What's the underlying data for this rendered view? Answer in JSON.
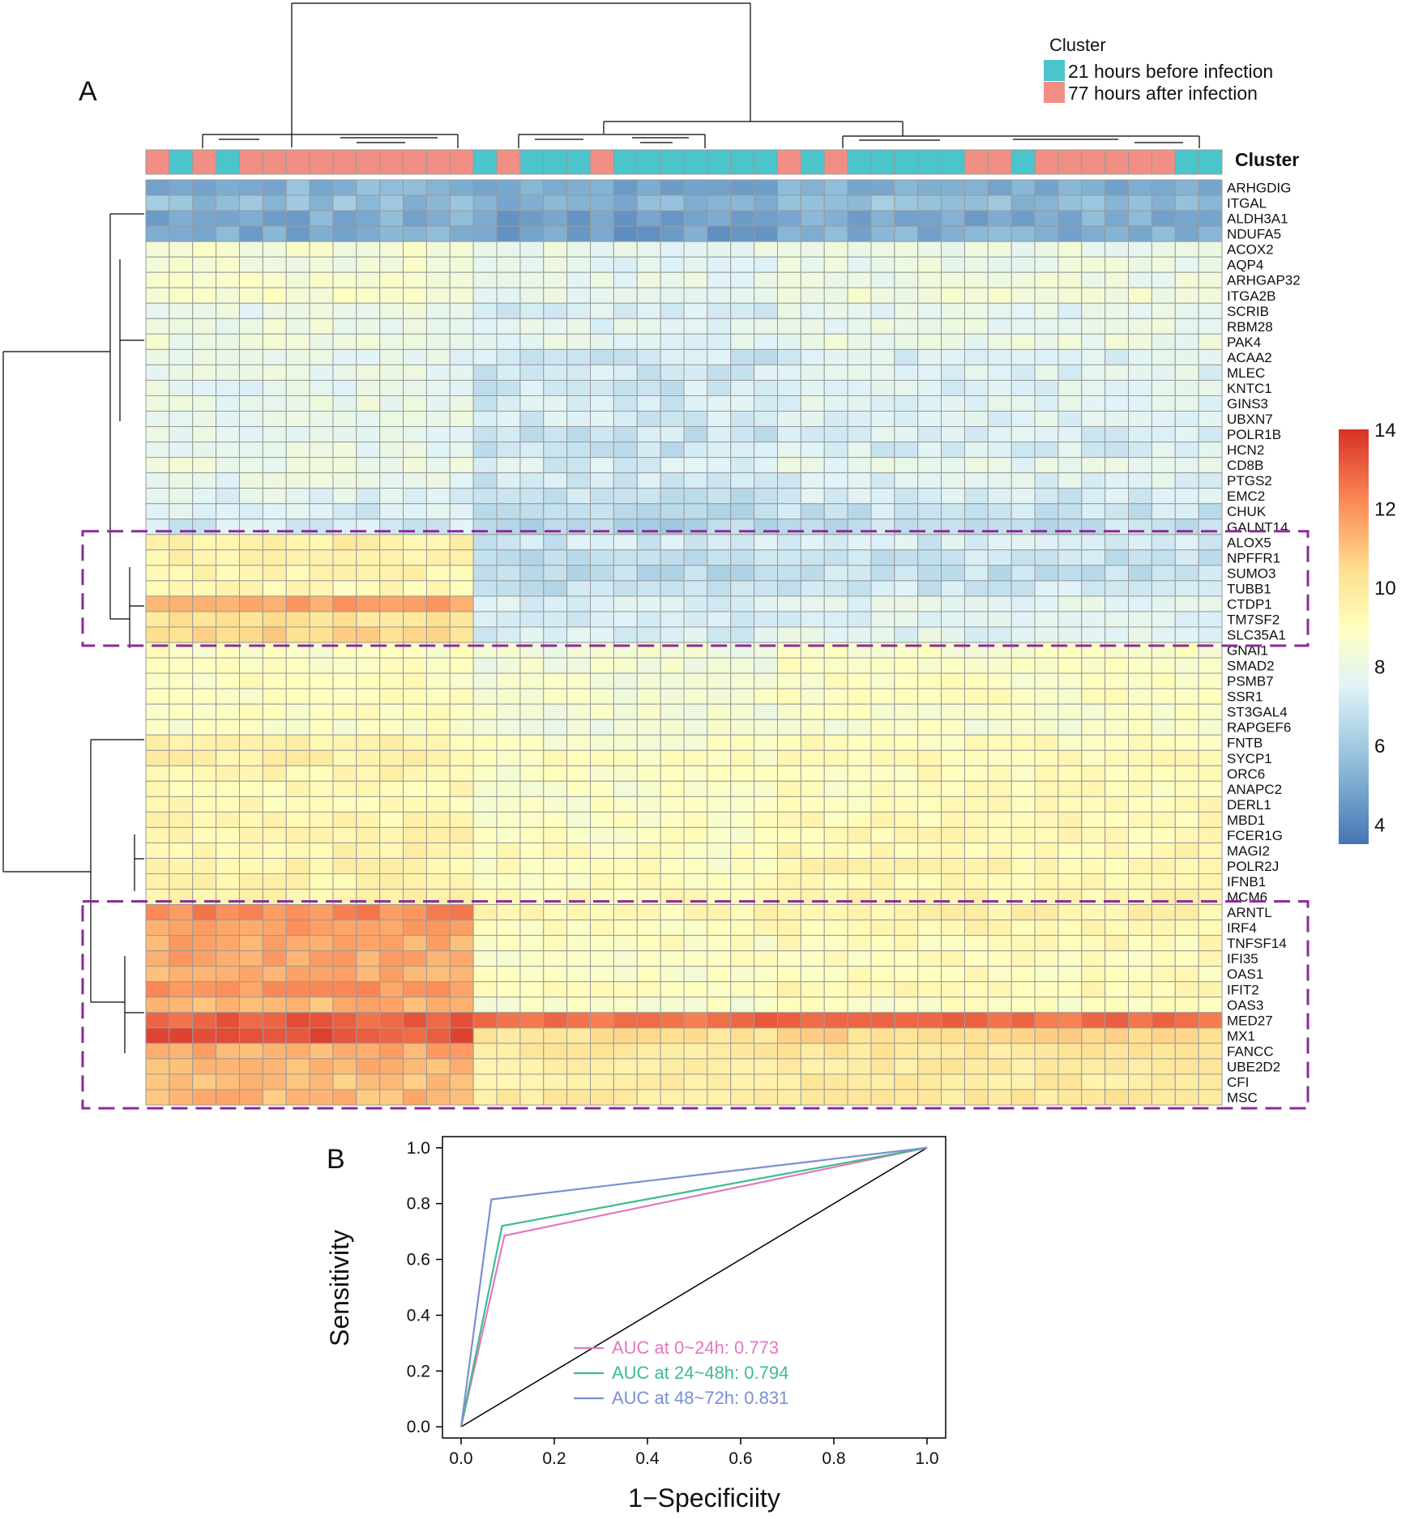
{
  "chart_data": [
    {
      "type": "heatmap",
      "panel_label": "A",
      "legend_title": "Cluster",
      "legend_items": [
        {
          "label": "21 hours before infection",
          "color": "#4bc4cc"
        },
        {
          "label": "77 hours after infection",
          "color": "#f18f85"
        }
      ],
      "annotation_label": "Cluster",
      "colorbar": {
        "min": 3.5,
        "max": 14,
        "ticks": [
          "14",
          "12",
          "10",
          "8",
          "6",
          "4"
        ],
        "colors": [
          "#4575b4",
          "#91bfdb",
          "#e0f3f8",
          "#ffffbf",
          "#fee090",
          "#fc8d59",
          "#d73027"
        ]
      },
      "column_groups": [
        "77 hours after infection",
        "21 hours before infection",
        "77 hours after infection",
        "21 hours before infection",
        "77 hours after infection",
        "77 hours after infection",
        "77 hours after infection",
        "77 hours after infection",
        "77 hours after infection",
        "77 hours after infection",
        "77 hours after infection",
        "77 hours after infection",
        "77 hours after infection",
        "77 hours after infection",
        "21 hours before infection",
        "77 hours after infection",
        "21 hours before infection",
        "21 hours before infection",
        "21 hours before infection",
        "77 hours after infection",
        "21 hours before infection",
        "21 hours before infection",
        "21 hours before infection",
        "21 hours before infection",
        "21 hours before infection",
        "21 hours before infection",
        "21 hours before infection",
        "77 hours after infection",
        "21 hours before infection",
        "77 hours after infection",
        "21 hours before infection",
        "21 hours before infection",
        "21 hours before infection",
        "21 hours before infection",
        "21 hours before infection",
        "77 hours after infection",
        "77 hours after infection",
        "21 hours before infection",
        "77 hours after infection",
        "77 hours after infection",
        "77 hours after infection",
        "77 hours after infection",
        "77 hours after infection",
        "77 hours after infection",
        "21 hours before infection",
        "21 hours before infection"
      ],
      "genes": [
        "ARHGDIG",
        "ITGAL",
        "ALDH3A1",
        "NDUFA5",
        "ACOX2",
        "AQP4",
        "ARHGAP32",
        "ITGA2B",
        "SCRIB",
        "RBM28",
        "PAK4",
        "ACAA2",
        "MLEC",
        "KNTC1",
        "GINS3",
        "UBXN7",
        "POLR1B",
        "HCN2",
        "CD8B",
        "PTGS2",
        "EMC2",
        "CHUK",
        "GALNT14",
        "ALOX5",
        "NPFFR1",
        "SUMO3",
        "TUBB1",
        "CTDP1",
        "TM7SF2",
        "SLC35A1",
        "GNAI1",
        "SMAD2",
        "PSMB7",
        "SSR1",
        "ST3GAL4",
        "RAPGEF6",
        "FNTB",
        "SYCP1",
        "ORC6",
        "ANAPC2",
        "DERL1",
        "MBD1",
        "FCER1G",
        "MAGI2",
        "POLR2J",
        "IFNB1",
        "MCM6",
        "ARNTL",
        "IRF4",
        "TNFSF14",
        "IFI35",
        "OAS1",
        "IFIT2",
        "OAS3",
        "MED27",
        "MX1",
        "FANCC",
        "UBE2D2",
        "CFI",
        "MSC"
      ],
      "row_means": [
        [
          5.0,
          4.6,
          4.8
        ],
        [
          5.3,
          5.0,
          5.3
        ],
        [
          4.8,
          4.4,
          4.8
        ],
        [
          4.8,
          4.5,
          4.8
        ],
        [
          8.2,
          7.4,
          7.6
        ],
        [
          8.0,
          7.3,
          7.6
        ],
        [
          8.2,
          7.4,
          7.7
        ],
        [
          8.4,
          7.5,
          7.9
        ],
        [
          7.5,
          6.9,
          7.3
        ],
        [
          7.7,
          7.2,
          7.5
        ],
        [
          7.8,
          7.3,
          7.6
        ],
        [
          7.3,
          6.6,
          7.0
        ],
        [
          7.5,
          6.7,
          7.1
        ],
        [
          7.3,
          6.6,
          7.0
        ],
        [
          7.5,
          6.8,
          7.2
        ],
        [
          7.4,
          6.7,
          7.1
        ],
        [
          7.3,
          6.5,
          6.9
        ],
        [
          7.4,
          6.5,
          6.9
        ],
        [
          7.7,
          6.9,
          7.3
        ],
        [
          7.4,
          6.7,
          7.0
        ],
        [
          7.1,
          6.4,
          6.8
        ],
        [
          6.9,
          6.1,
          6.5
        ],
        [
          6.8,
          6.0,
          6.4
        ],
        [
          9.6,
          6.6,
          6.8
        ],
        [
          9.4,
          6.3,
          6.5
        ],
        [
          9.3,
          6.2,
          6.4
        ],
        [
          9.0,
          6.4,
          6.6
        ],
        [
          11.8,
          6.9,
          7.3
        ],
        [
          10.2,
          6.7,
          7.0
        ],
        [
          10.6,
          6.9,
          7.2
        ],
        [
          8.6,
          8.0,
          8.4
        ],
        [
          8.6,
          8.0,
          8.5
        ],
        [
          8.7,
          8.1,
          8.6
        ],
        [
          8.8,
          8.2,
          8.7
        ],
        [
          8.7,
          8.1,
          8.6
        ],
        [
          8.5,
          7.9,
          8.3
        ],
        [
          9.3,
          8.5,
          8.9
        ],
        [
          9.5,
          8.7,
          9.0
        ],
        [
          9.2,
          8.5,
          8.9
        ],
        [
          9.0,
          8.4,
          8.8
        ],
        [
          9.1,
          8.5,
          8.9
        ],
        [
          9.2,
          8.6,
          9.0
        ],
        [
          9.3,
          8.7,
          9.1
        ],
        [
          9.4,
          8.8,
          9.2
        ],
        [
          9.4,
          8.8,
          9.3
        ],
        [
          9.3,
          8.8,
          9.2
        ],
        [
          9.4,
          8.9,
          9.3
        ],
        [
          12.3,
          9.2,
          9.5
        ],
        [
          11.8,
          8.9,
          9.2
        ],
        [
          11.6,
          8.7,
          9.0
        ],
        [
          11.7,
          8.6,
          8.9
        ],
        [
          11.5,
          8.5,
          8.8
        ],
        [
          12.1,
          8.7,
          9.1
        ],
        [
          11.4,
          8.4,
          8.7
        ],
        [
          13.1,
          12.9,
          12.8
        ],
        [
          13.3,
          10.3,
          10.6
        ],
        [
          11.6,
          9.9,
          10.1
        ],
        [
          11.3,
          9.7,
          9.9
        ],
        [
          11.2,
          9.6,
          9.8
        ],
        [
          11.3,
          9.8,
          10.0
        ]
      ],
      "highlight_boxes": [
        {
          "from_gene": "ALOX5",
          "to_gene": "SLC35A1"
        },
        {
          "from_gene": "ARNTL",
          "to_gene": "MSC"
        }
      ]
    },
    {
      "type": "line",
      "panel_label": "B",
      "xlabel": "1−Specificiity",
      "ylabel": "Sensitivity",
      "xlim": [
        -0.04,
        1.04
      ],
      "ylim": [
        -0.04,
        1.04
      ],
      "xticks": [
        "0.0",
        "0.2",
        "0.4",
        "0.6",
        "0.8",
        "1.0"
      ],
      "yticks": [
        "0.0",
        "0.2",
        "0.4",
        "0.6",
        "0.8",
        "1.0"
      ],
      "series": [
        {
          "name": "AUC at 0~24h:  0.773",
          "color": "#e377c2",
          "x": [
            0,
            0.093,
            1
          ],
          "y": [
            0,
            0.685,
            1
          ]
        },
        {
          "name": "AUC at 24~48h: 0.794",
          "color": "#3dbd8a",
          "x": [
            0,
            0.088,
            1
          ],
          "y": [
            0,
            0.72,
            1
          ]
        },
        {
          "name": "AUC at 48~72h: 0.831",
          "color": "#7b8fd1",
          "x": [
            0,
            0.065,
            1
          ],
          "y": [
            0,
            0.815,
            1
          ]
        }
      ],
      "reference_line": {
        "x": [
          0,
          1
        ],
        "y": [
          0,
          1
        ],
        "color": "#000000"
      }
    }
  ]
}
